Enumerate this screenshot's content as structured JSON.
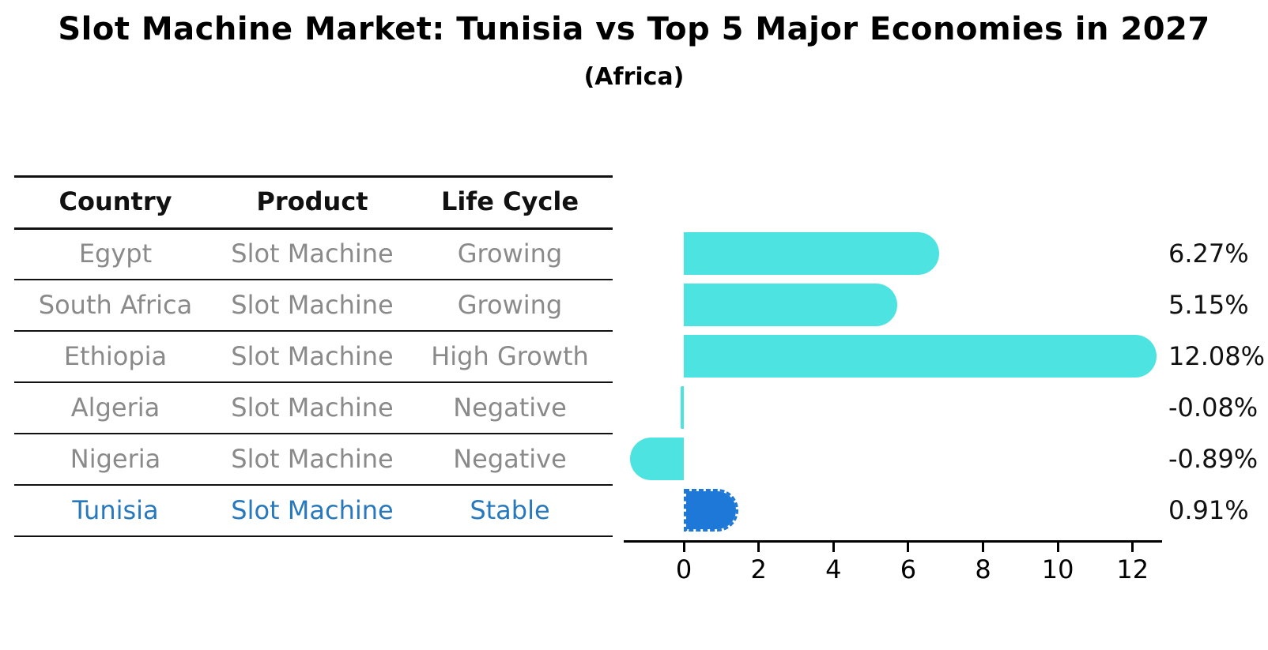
{
  "title": "Slot Machine Market: Tunisia vs Top 5 Major Economies in 2027",
  "subtitle": "(Africa)",
  "colors": {
    "bar_default": "#4de3e0",
    "bar_highlight": "#1e78d8",
    "highlight_text": "#2878bd",
    "table_text": "#8a8a8a",
    "axis": "#000000"
  },
  "table": {
    "headers": [
      "Country",
      "Product",
      "Life Cycle"
    ],
    "rows": [
      {
        "country": "Egypt",
        "product": "Slot Machine",
        "life_cycle": "Growing",
        "highlight": false
      },
      {
        "country": "South Africa",
        "product": "Slot Machine",
        "life_cycle": "Growing",
        "highlight": false
      },
      {
        "country": "Ethiopia",
        "product": "Slot Machine",
        "life_cycle": "High Growth",
        "highlight": false
      },
      {
        "country": "Algeria",
        "product": "Slot Machine",
        "life_cycle": "Negative",
        "highlight": false
      },
      {
        "country": "Nigeria",
        "product": "Slot Machine",
        "life_cycle": "Negative",
        "highlight": false
      },
      {
        "country": "Tunisia",
        "product": "Slot Machine",
        "life_cycle": "Stable",
        "highlight": true
      }
    ]
  },
  "chart_data": {
    "type": "bar",
    "orientation": "horizontal",
    "title": "Slot Machine Market: Tunisia vs Top 5 Major Economies in 2027",
    "subtitle": "(Africa)",
    "categories": [
      "Egypt",
      "South Africa",
      "Ethiopia",
      "Algeria",
      "Nigeria",
      "Tunisia"
    ],
    "values": [
      6.27,
      5.15,
      12.08,
      -0.08,
      -0.89,
      0.91
    ],
    "value_labels": [
      "6.27%",
      "5.15%",
      "12.08%",
      "-0.08%",
      "-0.89%",
      "0.91%"
    ],
    "highlight_category": "Tunisia",
    "x_ticks": [
      "0",
      "2",
      "4",
      "6",
      "8",
      "10",
      "12"
    ],
    "x_tick_values": [
      0,
      2,
      4,
      6,
      8,
      10,
      12
    ],
    "xlim": [
      -1.6,
      12.8
    ],
    "xlabel": "",
    "ylabel": "",
    "grid": false,
    "legend": false,
    "bar_style": "rounded-end",
    "highlight_bar_style": "dashed-outline"
  }
}
